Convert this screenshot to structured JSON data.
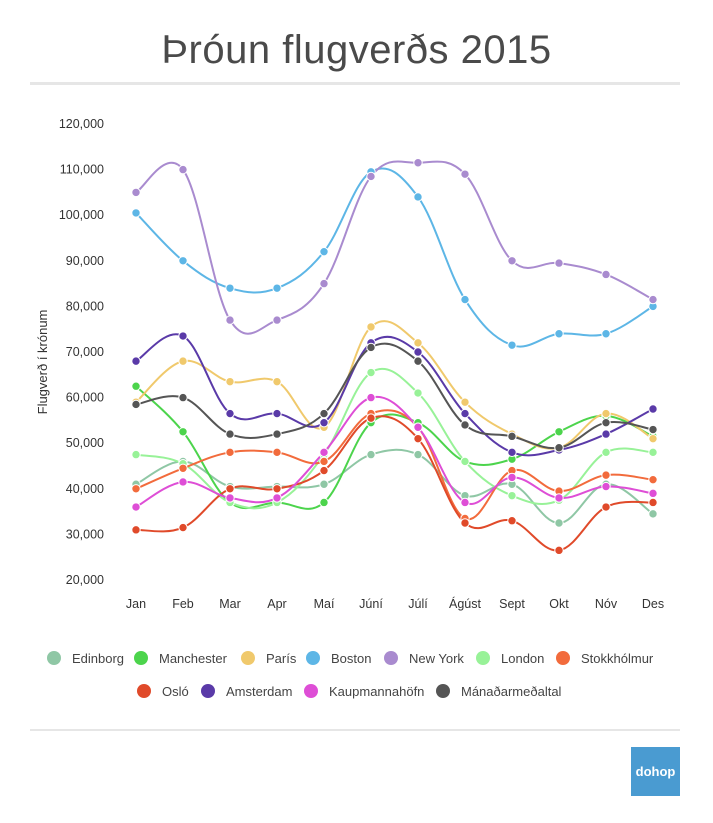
{
  "title": "Þróun flugverðs 2015",
  "logo_text": "dohop",
  "chart_data": {
    "type": "line",
    "title": "Þróun flugverðs 2015",
    "ylabel": "Flugverð í krónum",
    "xlabel": "",
    "ylim": [
      20000,
      120000
    ],
    "yticks": [
      20000,
      30000,
      40000,
      50000,
      60000,
      70000,
      80000,
      90000,
      100000,
      110000,
      120000
    ],
    "ytick_labels": [
      "20,000",
      "30,000",
      "40,000",
      "50,000",
      "60,000",
      "70,000",
      "80,000",
      "90,000",
      "100,000",
      "110,000",
      "120,000"
    ],
    "categories": [
      "Jan",
      "Feb",
      "Mar",
      "Apr",
      "Maí",
      "Júní",
      "Júlí",
      "Ágúst",
      "Sept",
      "Okt",
      "Nóv",
      "Des"
    ],
    "grid": false,
    "legend_position": "bottom",
    "series": [
      {
        "name": "Edinborg",
        "color": "#8fc7a5",
        "values": [
          41000,
          46000,
          40500,
          40500,
          41000,
          47500,
          47500,
          38500,
          41000,
          32500,
          41000,
          34500
        ]
      },
      {
        "name": "Manchester",
        "color": "#4cd44c",
        "values": [
          62500,
          52500,
          37000,
          37000,
          37000,
          54500,
          54500,
          46000,
          46500,
          52500,
          56000,
          51500
        ]
      },
      {
        "name": "París",
        "color": "#f0c96c",
        "values": [
          59000,
          68000,
          63500,
          63500,
          53500,
          75500,
          72000,
          59000,
          52000,
          49000,
          56500,
          51000
        ]
      },
      {
        "name": "Boston",
        "color": "#5db6e6",
        "values": [
          100500,
          90000,
          84000,
          84000,
          92000,
          109500,
          104000,
          81500,
          71500,
          74000,
          74000,
          80000
        ]
      },
      {
        "name": "New York",
        "color": "#a98bcf",
        "values": [
          105000,
          110000,
          77000,
          77000,
          85000,
          108500,
          111500,
          109000,
          90000,
          89500,
          87000,
          81500
        ]
      },
      {
        "name": "London",
        "color": "#98f298",
        "values": [
          47500,
          45500,
          37000,
          37000,
          47500,
          65500,
          61000,
          46000,
          38500,
          37500,
          48000,
          48000
        ]
      },
      {
        "name": "Stokkhólmur",
        "color": "#f26b3c",
        "values": [
          40000,
          44500,
          48000,
          48000,
          46000,
          56500,
          53500,
          33500,
          44000,
          39500,
          43000,
          42000
        ]
      },
      {
        "name": "Osló",
        "color": "#e04a2a",
        "values": [
          31000,
          31500,
          40000,
          40000,
          44000,
          55500,
          51000,
          32500,
          33000,
          26500,
          36000,
          37000
        ]
      },
      {
        "name": "Amsterdam",
        "color": "#5a3aa8",
        "values": [
          68000,
          73500,
          56500,
          56500,
          54500,
          72000,
          70000,
          56500,
          48000,
          48500,
          52000,
          57500
        ]
      },
      {
        "name": "Kaupmannahöfn",
        "color": "#de4ed6",
        "values": [
          36000,
          41500,
          38000,
          38000,
          48000,
          60000,
          53500,
          37000,
          42500,
          38000,
          40500,
          39000
        ]
      },
      {
        "name": "Mánaðarmeðaltal",
        "color": "#555555",
        "values": [
          58500,
          60000,
          52000,
          52000,
          56500,
          71000,
          68000,
          54000,
          51500,
          49000,
          54500,
          53000
        ]
      }
    ]
  }
}
